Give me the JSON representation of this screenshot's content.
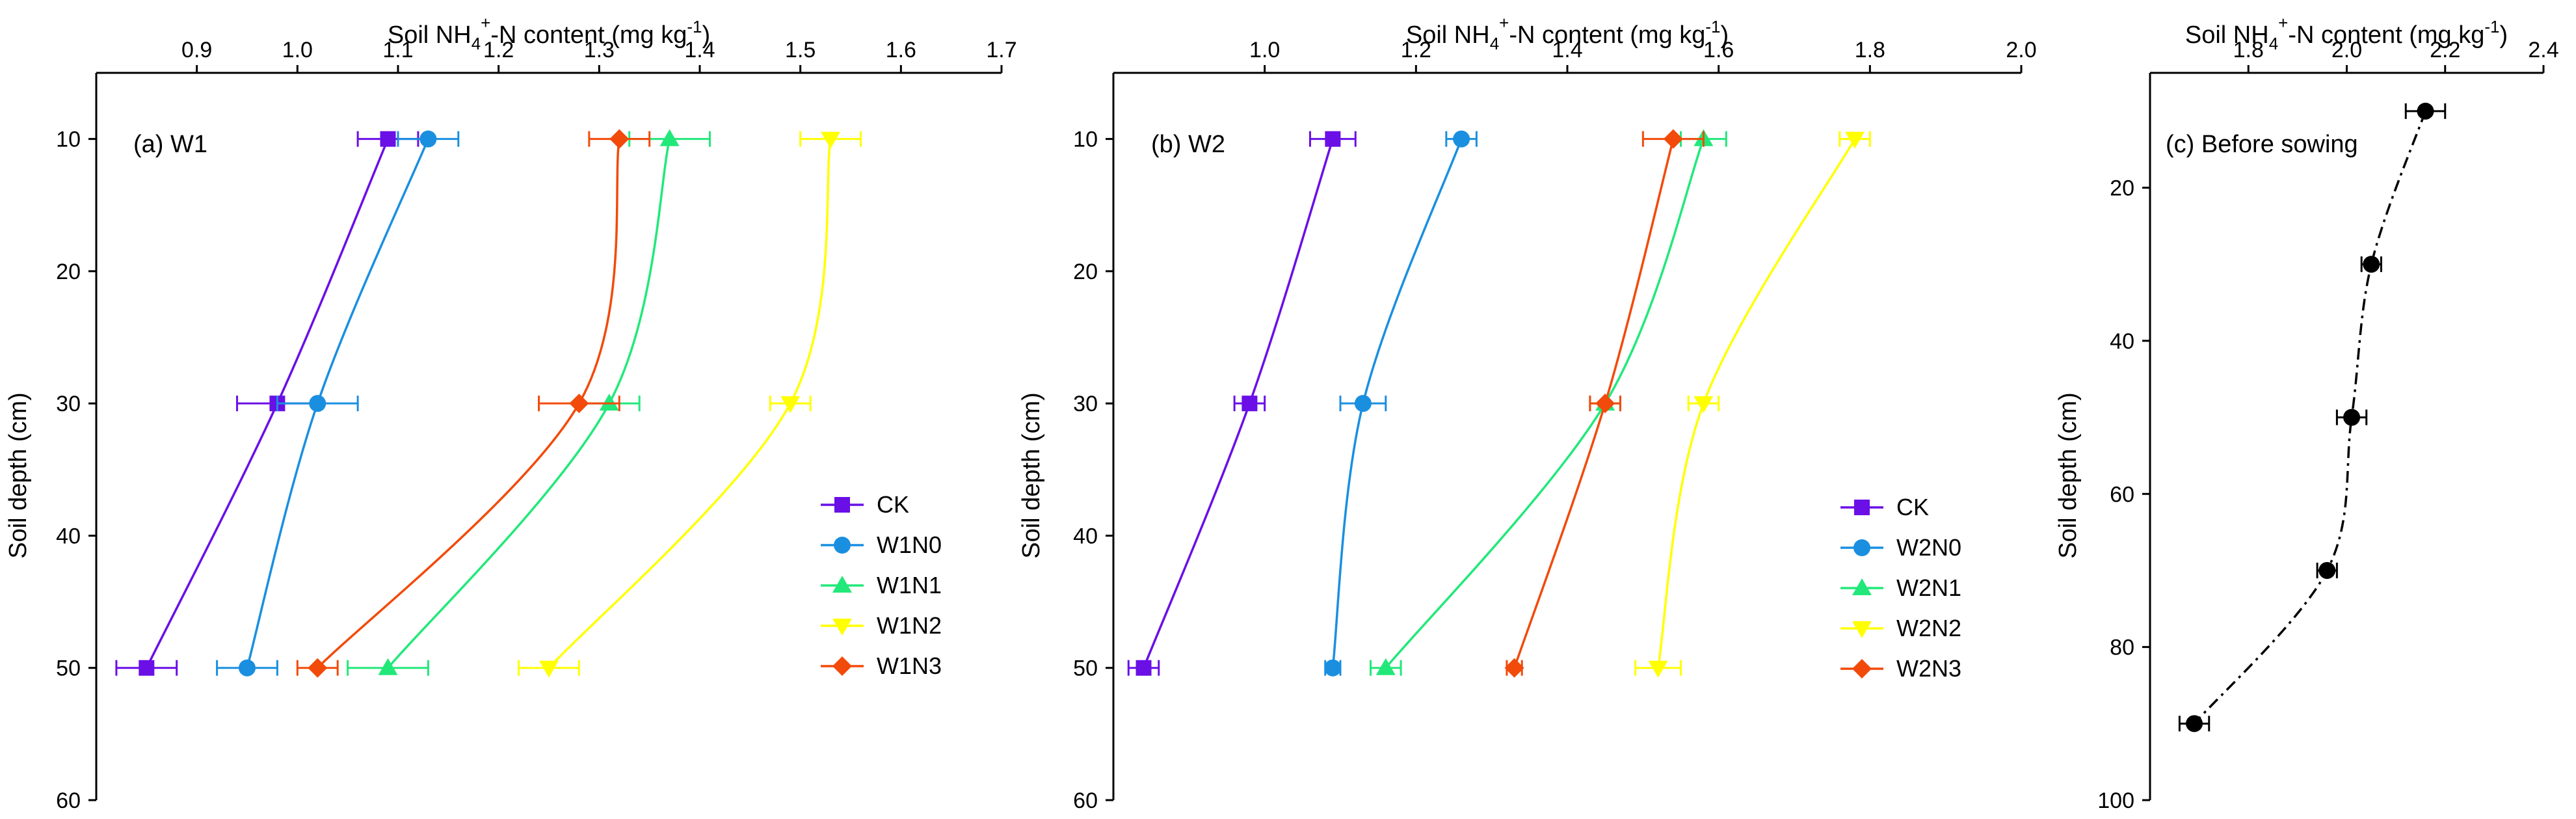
{
  "chart_data": [
    {
      "type": "line",
      "panel_label": "(a)  W1",
      "title_prefix": "Soil NH",
      "title_sub": "4",
      "title_sup": "+",
      "title_suffix": "-N content (mg kg",
      "title_unit_sup": "-1",
      "title_close": ")",
      "xlabel": "Soil NH4+-N content (mg kg-1)",
      "ylabel": "Soil depth (cm)",
      "xlim": [
        0.8,
        1.7
      ],
      "ylim": [
        60,
        5
      ],
      "xticks": [
        0.9,
        1.0,
        1.1,
        1.2,
        1.3,
        1.4,
        1.5,
        1.6,
        1.7
      ],
      "xtick_labels": [
        "0.9",
        "1.0",
        "1.1",
        "1.2",
        "1.3",
        "1.4",
        "1.5",
        "1.6",
        "1.7"
      ],
      "yticks": [
        10,
        20,
        30,
        40,
        50,
        60
      ],
      "ytick_labels": [
        "10",
        "20",
        "30",
        "40",
        "50",
        "60"
      ],
      "legend_position": "bottom-right",
      "series": [
        {
          "name": "CK",
          "color": "#6a0fe6",
          "marker": "square",
          "x": [
            1.09,
            0.98,
            0.85
          ],
          "y": [
            10,
            30,
            50
          ],
          "err": [
            0.03,
            0.04,
            0.03
          ]
        },
        {
          "name": "W1N0",
          "color": "#1a8fe0",
          "marker": "circle",
          "x": [
            1.13,
            1.02,
            0.95
          ],
          "y": [
            10,
            30,
            50
          ],
          "err": [
            0.03,
            0.04,
            0.03
          ]
        },
        {
          "name": "W1N1",
          "color": "#22e87a",
          "marker": "triangle-up",
          "x": [
            1.37,
            1.31,
            1.09
          ],
          "y": [
            10,
            30,
            50
          ],
          "err": [
            0.04,
            0.03,
            0.04
          ]
        },
        {
          "name": "W1N2",
          "color": "#ffff00",
          "marker": "triangle-down",
          "x": [
            1.53,
            1.49,
            1.25
          ],
          "y": [
            10,
            30,
            50
          ],
          "err": [
            0.03,
            0.02,
            0.03
          ]
        },
        {
          "name": "W1N3",
          "color": "#f24a0a",
          "marker": "diamond",
          "x": [
            1.32,
            1.28,
            1.02
          ],
          "y": [
            10,
            30,
            50
          ],
          "err": [
            0.03,
            0.04,
            0.02
          ]
        }
      ]
    },
    {
      "type": "line",
      "panel_label": "(b)  W2",
      "title_prefix": "Soil NH",
      "title_sub": "4",
      "title_sup": "+",
      "title_suffix": "-N content (mg kg",
      "title_unit_sup": "-1",
      "title_close": ")",
      "xlabel": "Soil NH4+-N content (mg kg-1)",
      "ylabel": "Soil depth (cm)",
      "xlim": [
        0.8,
        2.0
      ],
      "ylim": [
        60,
        5
      ],
      "xticks": [
        1.0,
        1.2,
        1.4,
        1.6,
        1.8,
        2.0
      ],
      "xtick_labels": [
        "1.0",
        "1.2",
        "1.4",
        "1.6",
        "1.8",
        "2.0"
      ],
      "yticks": [
        10,
        20,
        30,
        40,
        50,
        60
      ],
      "ytick_labels": [
        "10",
        "20",
        "30",
        "40",
        "50",
        "60"
      ],
      "legend_position": "bottom-right",
      "series": [
        {
          "name": "CK",
          "color": "#6a0fe6",
          "marker": "square",
          "x": [
            1.09,
            0.98,
            0.84
          ],
          "y": [
            10,
            30,
            50
          ],
          "err": [
            0.03,
            0.02,
            0.02
          ]
        },
        {
          "name": "W2N0",
          "color": "#1a8fe0",
          "marker": "circle",
          "x": [
            1.26,
            1.13,
            1.09
          ],
          "y": [
            10,
            30,
            50
          ],
          "err": [
            0.02,
            0.03,
            0.01
          ]
        },
        {
          "name": "W2N1",
          "color": "#22e87a",
          "marker": "triangle-up",
          "x": [
            1.58,
            1.45,
            1.16
          ],
          "y": [
            10,
            30,
            50
          ],
          "err": [
            0.03,
            0.02,
            0.02
          ]
        },
        {
          "name": "W2N2",
          "color": "#ffff00",
          "marker": "triangle-down",
          "x": [
            1.78,
            1.58,
            1.52
          ],
          "y": [
            10,
            30,
            50
          ],
          "err": [
            0.02,
            0.02,
            0.03
          ]
        },
        {
          "name": "W2N3",
          "color": "#f24a0a",
          "marker": "diamond",
          "x": [
            1.54,
            1.45,
            1.33
          ],
          "y": [
            10,
            30,
            50
          ],
          "err": [
            0.04,
            0.02,
            0.01
          ]
        }
      ]
    },
    {
      "type": "line",
      "panel_label": "(c)  Before sowing",
      "title_prefix": "Soil NH",
      "title_sub": "4",
      "title_sup": "+",
      "title_suffix": "-N content (mg kg",
      "title_unit_sup": "-1",
      "title_close": ")",
      "xlabel": "Soil NH4+-N content (mg kg-1)",
      "ylabel": "Soil depth (cm)",
      "xlim": [
        1.6,
        2.4
      ],
      "ylim": [
        100,
        5
      ],
      "xticks": [
        1.8,
        2.0,
        2.2,
        2.4
      ],
      "xtick_labels": [
        "1.8",
        "2.0",
        "2.2",
        "2.4"
      ],
      "yticks": [
        20,
        40,
        60,
        80,
        100
      ],
      "ytick_labels": [
        "20",
        "40",
        "60",
        "80",
        "100"
      ],
      "legend_position": "none",
      "series": [
        {
          "name": "Before sowing",
          "color": "#000000",
          "marker": "circle",
          "dash": "dashdot",
          "x": [
            2.16,
            2.05,
            2.01,
            1.96,
            1.69
          ],
          "y": [
            10,
            30,
            50,
            70,
            90
          ],
          "err": [
            0.04,
            0.02,
            0.03,
            0.02,
            0.03
          ]
        }
      ]
    }
  ]
}
